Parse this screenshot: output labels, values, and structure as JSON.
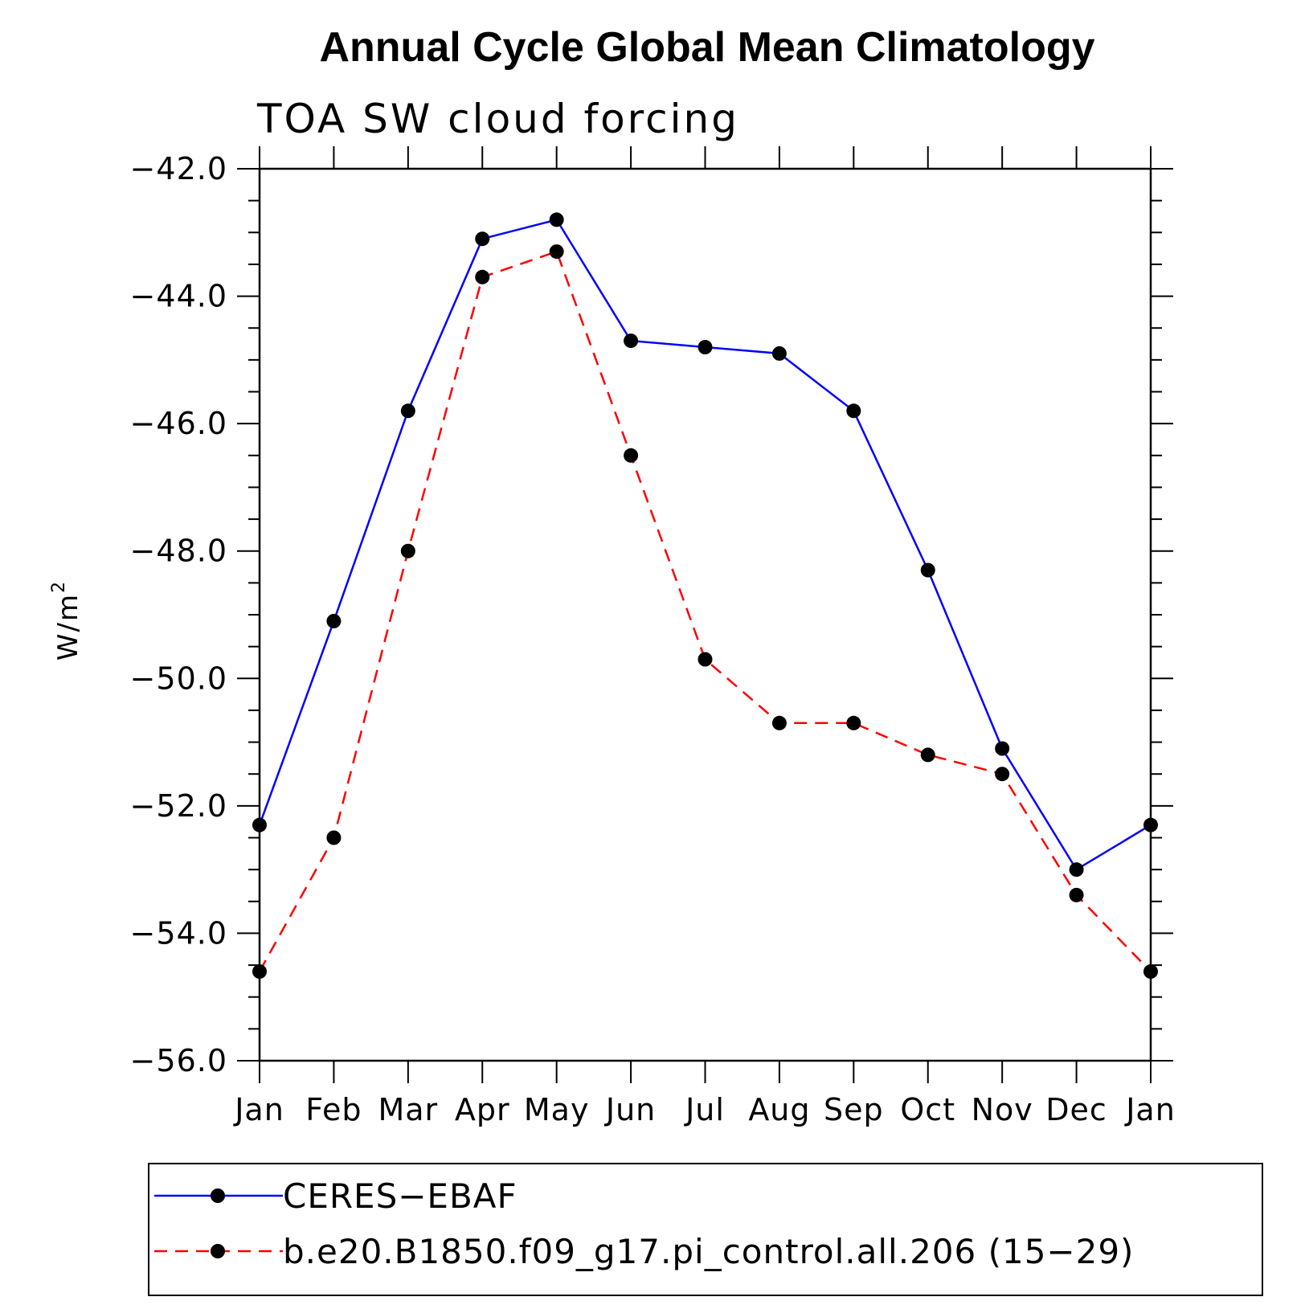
{
  "chart_data": {
    "type": "line",
    "title": "Annual Cycle Global Mean Climatology",
    "subtitle": "TOA SW cloud forcing",
    "ylabel": "W/m",
    "ylabel_superscript": "2",
    "categories": [
      "Jan",
      "Feb",
      "Mar",
      "Apr",
      "May",
      "Jun",
      "Jul",
      "Aug",
      "Sep",
      "Oct",
      "Nov",
      "Dec",
      "Jan"
    ],
    "ylim": [
      -56.0,
      -42.0
    ],
    "yticks": [
      -42.0,
      -44.0,
      -46.0,
      -48.0,
      -50.0,
      -52.0,
      -54.0,
      -56.0
    ],
    "ytick_labels": [
      "−42.0",
      "−44.0",
      "−46.0",
      "−48.0",
      "−50.0",
      "−52.0",
      "−54.0",
      "−56.0"
    ],
    "series": [
      {
        "name": "CERES−EBAF",
        "color": "#0000ff",
        "dash": "solid",
        "values": [
          -52.3,
          -49.1,
          -45.8,
          -43.1,
          -42.8,
          -44.7,
          -44.8,
          -44.9,
          -45.8,
          -48.3,
          -51.1,
          -53.0,
          -52.3
        ]
      },
      {
        "name": "b.e20.B1850.f09_g17.pi_control.all.206 (15−29)",
        "color": "#ff0000",
        "dash": "dashed",
        "values": [
          -54.6,
          -52.5,
          -48.0,
          -43.7,
          -43.3,
          -46.5,
          -49.7,
          -50.7,
          -50.7,
          -51.2,
          -51.5,
          -53.4,
          -54.6
        ]
      }
    ]
  }
}
